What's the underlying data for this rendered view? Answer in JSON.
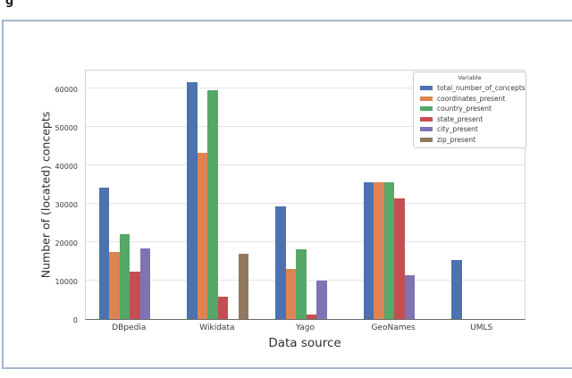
{
  "page": {
    "cropped_text": "g"
  },
  "chart_data": {
    "type": "bar",
    "title": "",
    "xlabel": "Data source",
    "ylabel": "Number of (located) concepts",
    "legend_title": "Variable",
    "legend_position": "upper right",
    "grid": true,
    "categories": [
      "DBpedia",
      "Wikidata",
      "Yago",
      "GeoNames",
      "UMLS"
    ],
    "yticks": [
      0,
      10000,
      20000,
      30000,
      40000,
      50000,
      60000
    ],
    "ylim": [
      0,
      65000
    ],
    "series": [
      {
        "name": "total_number_of_concepts",
        "color": "#4c72b0",
        "values": [
          34200,
          61500,
          29300,
          35500,
          15300
        ]
      },
      {
        "name": "coordinates_present",
        "color": "#dd8452",
        "values": [
          17400,
          43100,
          12900,
          35500,
          null
        ]
      },
      {
        "name": "country_present",
        "color": "#55a868",
        "values": [
          22100,
          59400,
          18200,
          35500,
          null
        ]
      },
      {
        "name": "state_present",
        "color": "#c44e52",
        "values": [
          12300,
          5900,
          1200,
          31400,
          null
        ]
      },
      {
        "name": "city_present",
        "color": "#8172b3",
        "values": [
          18400,
          null,
          10000,
          11400,
          null
        ]
      },
      {
        "name": "zip_present",
        "color": "#937860",
        "values": [
          null,
          17000,
          null,
          null,
          null
        ]
      }
    ]
  }
}
